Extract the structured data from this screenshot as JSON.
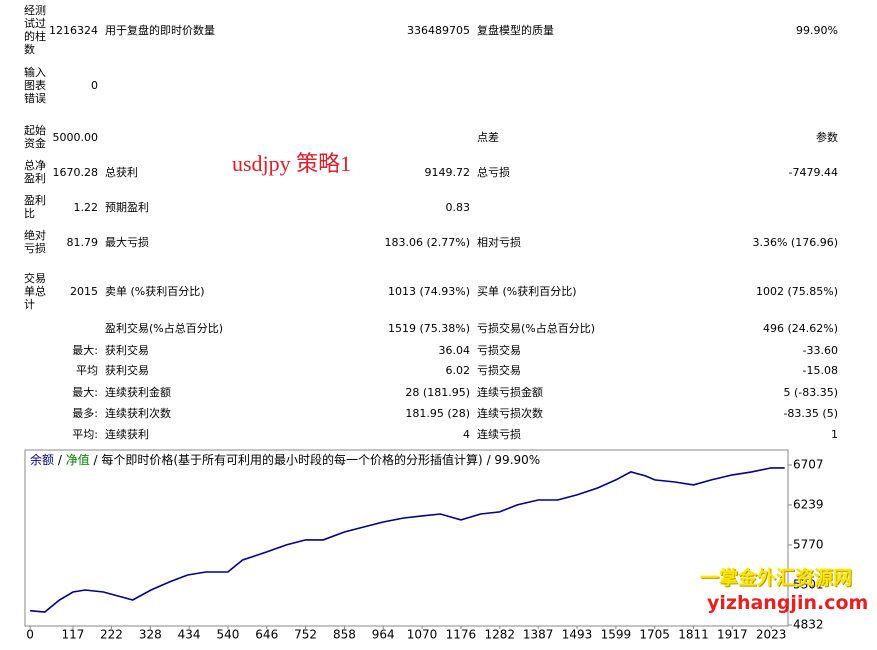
{
  "report": {
    "rows": [
      [
        "经测试过的柱数",
        "1216324",
        "用于复盘的即时价数量",
        "336489705",
        "复盘模型的质量",
        "99.90%"
      ],
      [
        "输入图表错误",
        "0",
        null,
        null,
        null,
        null
      ],
      [
        "起始资金",
        "5000.00",
        null,
        null,
        "点差",
        "参数"
      ],
      [
        "总净盈利",
        "1670.28",
        "总获利",
        "9149.72",
        "总亏损",
        "-7479.44"
      ],
      [
        "盈利比",
        "1.22",
        "预期盈利",
        "0.83",
        null,
        null
      ],
      [
        "绝对亏损",
        "81.79",
        "最大亏损",
        "183.06 (2.77%)",
        "相对亏损",
        "3.36% (176.96)"
      ],
      [
        "交易单总计",
        "2015",
        "卖单 (%获利百分比)",
        "1013 (74.93%)",
        "买单 (%获利百分比)",
        "1002 (75.85%)"
      ],
      [
        null,
        null,
        "盈利交易(%占总百分比)",
        "1519 (75.38%)",
        "亏损交易(%占总百分比)",
        "496 (24.62%)"
      ],
      [
        null,
        "最大:",
        "获利交易",
        "36.04",
        "亏损交易",
        "-33.60"
      ],
      [
        null,
        "平均",
        "获利交易",
        "6.02",
        "亏损交易",
        "-15.08"
      ],
      [
        null,
        "最大:",
        "连续获利金额",
        "28 (181.95)",
        "连续亏损金额",
        "5 (-83.35)"
      ],
      [
        null,
        "最多:",
        "连续获利次数",
        "181.95 (28)",
        "连续亏损次数",
        "-83.35 (5)"
      ],
      [
        null,
        "平均:",
        "连续获利",
        "4",
        "连续亏损",
        "1"
      ]
    ],
    "annotation": "usdjpy  策略1",
    "watermark": [
      "一掌金外汇资源网",
      "yizhangjin.com"
    ]
  },
  "chart_data": {
    "type": "line",
    "legend_separator": " / ",
    "series": [
      {
        "name": "余额",
        "color": "#00008b",
        "x": [
          0,
          40,
          80,
          117,
          150,
          200,
          240,
          280,
          330,
          380,
          430,
          480,
          540,
          580,
          646,
          700,
          752,
          800,
          858,
          900,
          964,
          1020,
          1070,
          1120,
          1176,
          1230,
          1282,
          1330,
          1387,
          1440,
          1493,
          1550,
          1599,
          1640,
          1680,
          1705,
          1760,
          1811,
          1860,
          1917,
          1970,
          2023,
          2060
        ],
        "values": [
          5000,
          4984,
          5125,
          5219,
          5242,
          5219,
          5172,
          5125,
          5242,
          5336,
          5418,
          5453,
          5453,
          5594,
          5688,
          5770,
          5829,
          5829,
          5922,
          5969,
          6039,
          6086,
          6110,
          6133,
          6063,
          6133,
          6157,
          6239,
          6297,
          6297,
          6356,
          6438,
          6532,
          6626,
          6579,
          6532,
          6508,
          6473,
          6532,
          6591,
          6626,
          6673,
          6673
        ]
      }
    ],
    "legend_extra": [
      {
        "name": "净值",
        "color": "#008000"
      }
    ],
    "subtitle": "每个即时价格(基于所有可利用的最小时段的每一个价格的分形插值计算)",
    "quality": "99.90%",
    "xlim": [
      -14,
      2069
    ],
    "xticks": [
      0,
      117,
      222,
      328,
      434,
      540,
      646,
      752,
      858,
      964,
      1070,
      1176,
      1282,
      1387,
      1493,
      1599,
      1705,
      1811,
      1917,
      2023
    ],
    "ylim": [
      4832,
      6859
    ],
    "yticks": [
      4832,
      5301,
      5770,
      6239,
      6707
    ]
  }
}
